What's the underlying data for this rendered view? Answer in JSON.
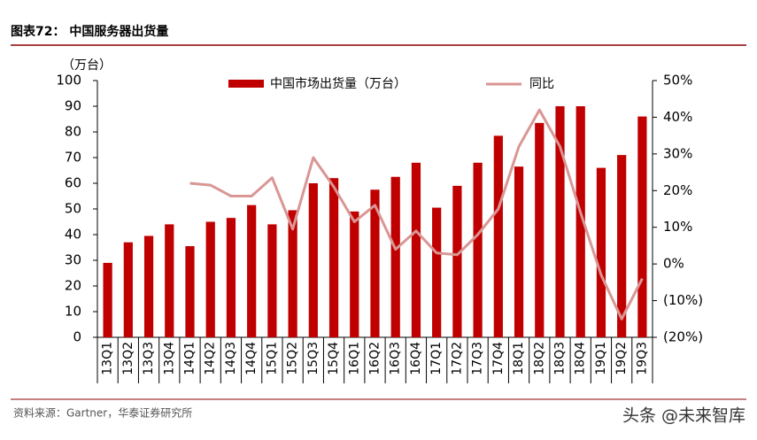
{
  "chart_data": {
    "type": "bar-line",
    "title": "图表72：  中国服务器出货量",
    "y_label": "（万台）",
    "source": "资料来源：Gartner，华泰证券研究所",
    "watermark": "头条 @未来智库",
    "categories": [
      "13Q1",
      "13Q2",
      "13Q3",
      "13Q4",
      "14Q1",
      "14Q2",
      "14Q3",
      "14Q4",
      "15Q1",
      "15Q2",
      "15Q3",
      "15Q4",
      "16Q1",
      "16Q2",
      "16Q3",
      "16Q4",
      "17Q1",
      "17Q2",
      "17Q3",
      "17Q4",
      "18Q1",
      "18Q2",
      "18Q3",
      "18Q4",
      "19Q1",
      "19Q2",
      "19Q3"
    ],
    "series": [
      {
        "name": "中国市场出货量（万台）",
        "type": "bar",
        "color": "#c00000",
        "values": [
          29,
          37,
          39.5,
          44,
          35.5,
          45,
          46.5,
          51.5,
          44,
          49.5,
          60,
          62,
          49,
          57.5,
          62.5,
          68,
          50.5,
          59,
          68,
          78.5,
          66.5,
          83.5,
          90,
          90,
          66,
          71,
          86
        ]
      },
      {
        "name": "同比",
        "type": "line",
        "axis": "y2",
        "color": "#d99694",
        "values": [
          null,
          null,
          null,
          null,
          22,
          21.5,
          18.5,
          18.5,
          23.5,
          9.5,
          29,
          21,
          11.5,
          16,
          4,
          9,
          3,
          2.5,
          8,
          15,
          32,
          42,
          32,
          14,
          -3,
          -15,
          -4
        ]
      }
    ],
    "ylim": [
      0,
      100
    ],
    "yticks": [
      0,
      10,
      20,
      30,
      40,
      50,
      60,
      70,
      80,
      90,
      100
    ],
    "y2lim": [
      -20,
      50
    ],
    "y2ticks": [
      {
        "value": -20,
        "label": "(20%)"
      },
      {
        "value": -10,
        "label": "(10%)"
      },
      {
        "value": 0,
        "label": "0%"
      },
      {
        "value": 10,
        "label": "10%"
      },
      {
        "value": 20,
        "label": "20%"
      },
      {
        "value": 30,
        "label": "30%"
      },
      {
        "value": 40,
        "label": "40%"
      },
      {
        "value": 50,
        "label": "50%"
      }
    ]
  }
}
